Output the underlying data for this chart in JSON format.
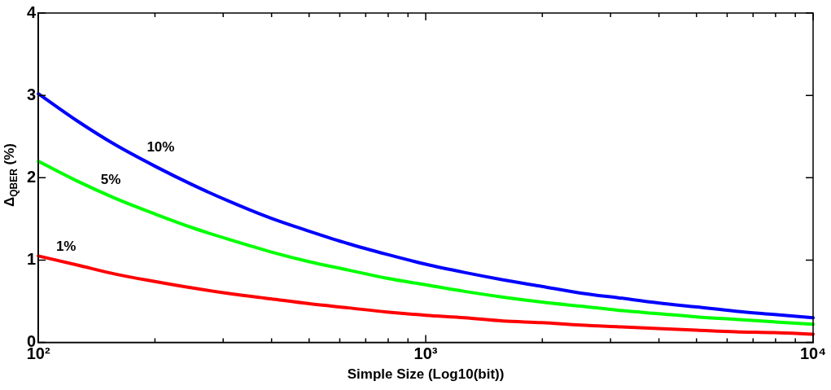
{
  "chart_data": {
    "type": "line",
    "xlabel": "Simple Size (Log10(bit))",
    "ylabel": "Δ$_{QBER}$ (%)",
    "log": "x",
    "grid": false,
    "legend": false,
    "marker": "none",
    "line_style": "solid",
    "x": [
      100,
      126,
      158,
      200,
      251,
      316,
      398,
      501,
      631,
      794,
      1000,
      1259,
      1585,
      1995,
      2512,
      3162,
      3981,
      5012,
      6310,
      7943,
      10000
    ],
    "xlim": [
      100,
      10000
    ],
    "xticks": [
      {
        "value": 100,
        "label": "10²"
      },
      {
        "value": 200,
        "label": null
      },
      {
        "value": 300,
        "label": null
      },
      {
        "value": 400,
        "label": null
      },
      {
        "value": 500,
        "label": null
      },
      {
        "value": 600,
        "label": null
      },
      {
        "value": 700,
        "label": null
      },
      {
        "value": 800,
        "label": null
      },
      {
        "value": 900,
        "label": null
      },
      {
        "value": 1000,
        "label": "10³"
      },
      {
        "value": 2000,
        "label": null
      },
      {
        "value": 3000,
        "label": null
      },
      {
        "value": 4000,
        "label": null
      },
      {
        "value": 5000,
        "label": null
      },
      {
        "value": 6000,
        "label": null
      },
      {
        "value": 7000,
        "label": null
      },
      {
        "value": 8000,
        "label": null
      },
      {
        "value": 9000,
        "label": null
      },
      {
        "value": 10000,
        "label": "10⁴"
      }
    ],
    "ylim": [
      0,
      4
    ],
    "yticks": [
      0,
      1,
      2,
      3,
      4
    ],
    "series": [
      {
        "name": "10%",
        "color": "#0000ff",
        "values": [
          3.02,
          2.69,
          2.4,
          2.14,
          1.91,
          1.7,
          1.51,
          1.35,
          1.2,
          1.07,
          0.95,
          0.85,
          0.76,
          0.68,
          0.6,
          0.54,
          0.48,
          0.43,
          0.38,
          0.34,
          0.3
        ]
      },
      {
        "name": "5%",
        "color": "#00ff00",
        "values": [
          2.2,
          1.96,
          1.75,
          1.56,
          1.39,
          1.24,
          1.1,
          0.98,
          0.88,
          0.78,
          0.7,
          0.62,
          0.55,
          0.49,
          0.44,
          0.39,
          0.35,
          0.31,
          0.28,
          0.25,
          0.22
        ]
      },
      {
        "name": "1%",
        "color": "#ff0000",
        "values": [
          1.05,
          0.94,
          0.83,
          0.74,
          0.66,
          0.59,
          0.53,
          0.47,
          0.42,
          0.37,
          0.33,
          0.3,
          0.26,
          0.24,
          0.21,
          0.19,
          0.17,
          0.15,
          0.13,
          0.12,
          0.1
        ]
      }
    ]
  }
}
